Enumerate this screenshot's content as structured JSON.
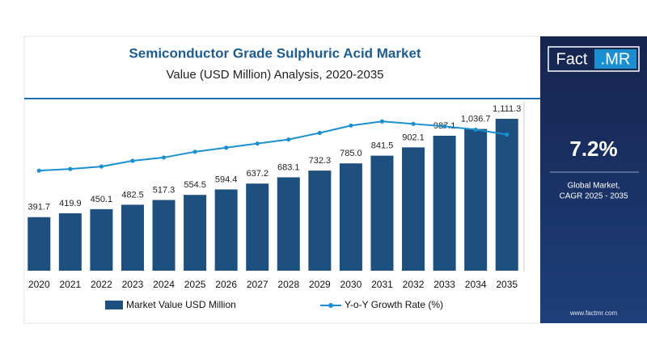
{
  "chart_data": {
    "type": "bar",
    "title": "Semiconductor Grade Sulphuric Acid Market",
    "subtitle": "Value (USD Million) Analysis, 2020-2035",
    "categories": [
      "2020",
      "2021",
      "2022",
      "2023",
      "2024",
      "2025",
      "2026",
      "2027",
      "2028",
      "2029",
      "2030",
      "2031",
      "2032",
      "2033",
      "2034",
      "2035"
    ],
    "ylim": [
      0,
      1200
    ],
    "y2lim": [
      0,
      10
    ],
    "series": [
      {
        "name": "Market Value USD Million",
        "type": "bar",
        "color": "#1d4f7f",
        "values": [
          391.7,
          419.9,
          450.1,
          482.5,
          517.3,
          554.5,
          594.4,
          637.2,
          683.1,
          732.3,
          785.0,
          841.5,
          902.1,
          987.1,
          1036.7,
          1111.3
        ],
        "value_labels": [
          "391.7",
          "419.9",
          "450.1",
          "482.5",
          "517.3",
          "554.5",
          "594.4",
          "637.2",
          "683.1",
          "732.3",
          "785.0",
          "841.5",
          "902.1",
          "987.1",
          "1,036.7",
          "1,111.3"
        ]
      },
      {
        "name": "Y-o-Y Growth Rate (%)",
        "type": "line",
        "axis": "y2",
        "color": "#1b8fcf",
        "values": [
          6.1,
          6.2,
          6.35,
          6.7,
          6.9,
          7.25,
          7.5,
          7.75,
          8.0,
          8.4,
          8.85,
          9.1,
          8.95,
          8.8,
          8.6,
          8.3
        ]
      }
    ]
  },
  "panel": {
    "logo_left": "Fact",
    "logo_right": ".MR",
    "cagr": "7.2%",
    "cagr_label": [
      "Global Market,",
      "CAGR 2025 - 2035"
    ],
    "website": "www.factmr.com"
  }
}
